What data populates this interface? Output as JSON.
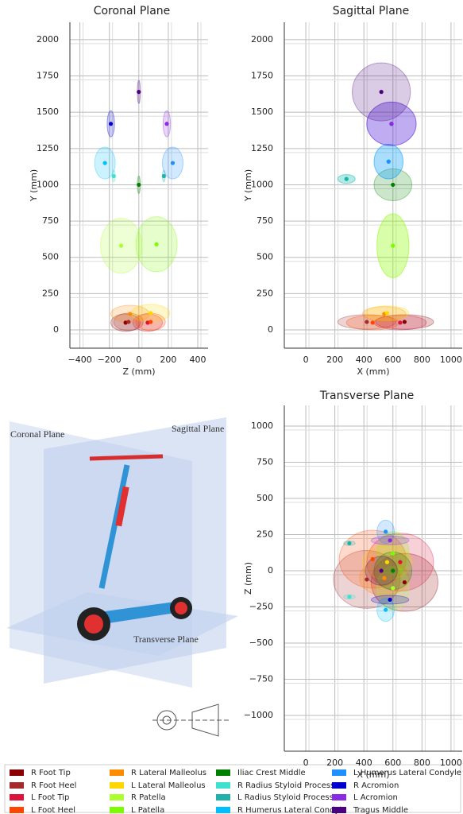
{
  "chart_data": [
    {
      "type": "scatter",
      "title": "Coronal Plane",
      "xlabel": "Z (mm)",
      "ylabel": "Y (mm)",
      "grid": true,
      "xlim": [
        -468,
        470
      ],
      "ylim": [
        -126,
        2120
      ],
      "xticks": [
        {
          "value": -400,
          "label": "−400"
        },
        {
          "value": -200,
          "label": "−200"
        },
        0,
        200,
        400
      ],
      "yticks": [
        0,
        250,
        500,
        750,
        1000,
        1250,
        1500,
        1750,
        2000
      ],
      "x": [
        -90,
        -70,
        60,
        80,
        -60,
        80,
        -120,
        120,
        0,
        -170,
        170,
        -230,
        230,
        -190,
        190,
        0
      ],
      "y": [
        50,
        55,
        50,
        55,
        110,
        115,
        580,
        590,
        1000,
        1060,
        1060,
        1150,
        1150,
        1420,
        1420,
        1640
      ],
      "sx": [
        100,
        100,
        100,
        100,
        130,
        130,
        140,
        140,
        10,
        10,
        10,
        70,
        70,
        25,
        25,
        10
      ],
      "sy": [
        60,
        60,
        60,
        60,
        60,
        60,
        190,
        190,
        60,
        40,
        40,
        110,
        110,
        90,
        90,
        80
      ]
    },
    {
      "type": "scatter",
      "title": "Sagittal Plane",
      "xlabel": "X (mm)",
      "ylabel": "Y (mm)",
      "grid": true,
      "xlim": [
        -148,
        1077
      ],
      "ylim": [
        -126,
        2120
      ],
      "xticks": [
        0,
        200,
        400,
        600,
        800,
        1000
      ],
      "yticks": [
        0,
        250,
        500,
        750,
        1000,
        1250,
        1500,
        1750,
        2000
      ],
      "x": [
        680,
        420,
        650,
        460,
        540,
        560,
        600,
        600,
        600,
        280,
        280,
        570,
        570,
        590,
        590,
        520
      ],
      "y": [
        55,
        55,
        50,
        50,
        110,
        115,
        580,
        580,
        1000,
        1040,
        1040,
        1160,
        1160,
        1420,
        1420,
        1640
      ],
      "sx": [
        200,
        200,
        180,
        180,
        150,
        150,
        110,
        110,
        130,
        60,
        60,
        100,
        100,
        170,
        170,
        200
      ],
      "sy": [
        50,
        50,
        50,
        50,
        50,
        50,
        220,
        220,
        110,
        30,
        30,
        120,
        120,
        150,
        150,
        200
      ]
    },
    {
      "type": "scatter",
      "title": "Transverse Plane",
      "xlabel": "X (mm)",
      "ylabel": "Z (mm)",
      "grid": true,
      "xlim": [
        -148,
        1077
      ],
      "ylim": [
        -1247,
        1143
      ],
      "xticks": [
        0,
        200,
        400,
        600,
        800,
        1000
      ],
      "yticks": [
        {
          "value": -1000,
          "label": "−1000"
        },
        {
          "value": -750,
          "label": "−750"
        },
        {
          "value": -500,
          "label": "−500"
        },
        {
          "value": -250,
          "label": "−250"
        },
        0,
        250,
        500,
        750,
        1000
      ],
      "x": [
        680,
        420,
        650,
        460,
        540,
        560,
        600,
        600,
        600,
        300,
        300,
        550,
        550,
        580,
        580,
        520
      ],
      "y": [
        -80,
        -60,
        60,
        80,
        -50,
        60,
        -120,
        120,
        0,
        -180,
        190,
        -270,
        270,
        -200,
        210,
        0
      ],
      "sx": [
        230,
        230,
        230,
        230,
        170,
        170,
        110,
        110,
        130,
        40,
        40,
        60,
        60,
        130,
        130,
        110
      ],
      "sy": [
        200,
        200,
        200,
        200,
        120,
        120,
        150,
        150,
        130,
        15,
        15,
        80,
        80,
        30,
        30,
        100
      ]
    }
  ],
  "landmarks": [
    {
      "name": "R Foot Tip",
      "color": "#8b0000"
    },
    {
      "name": "R Foot Heel",
      "color": "#a52a2a"
    },
    {
      "name": "L Foot Tip",
      "color": "#dc143c"
    },
    {
      "name": "L Foot Heel",
      "color": "#ff4500"
    },
    {
      "name": "R Lateral Malleolus",
      "color": "#ff8c00"
    },
    {
      "name": "L Lateral Malleolus",
      "color": "#ffd700"
    },
    {
      "name": "R Patella",
      "color": "#adff2f"
    },
    {
      "name": "L Patella",
      "color": "#7cfc00"
    },
    {
      "name": "Iliac Crest Middle",
      "color": "#008000"
    },
    {
      "name": "R Radius Styloid Process",
      "color": "#40e0d0"
    },
    {
      "name": "L Radius Styloid Process",
      "color": "#20b2aa"
    },
    {
      "name": "R Humerus Lateral Condyle",
      "color": "#00bfff"
    },
    {
      "name": "L Humerus Lateral Condyle",
      "color": "#1e90ff"
    },
    {
      "name": "R Acromion",
      "color": "#0000cd"
    },
    {
      "name": "L Acromion",
      "color": "#8a2be2"
    },
    {
      "name": "Tragus Middle",
      "color": "#4b0082"
    }
  ],
  "illustration": {
    "labels": [
      "Coronal Plane",
      "Sagittal Plane",
      "Transverse Plane"
    ]
  }
}
